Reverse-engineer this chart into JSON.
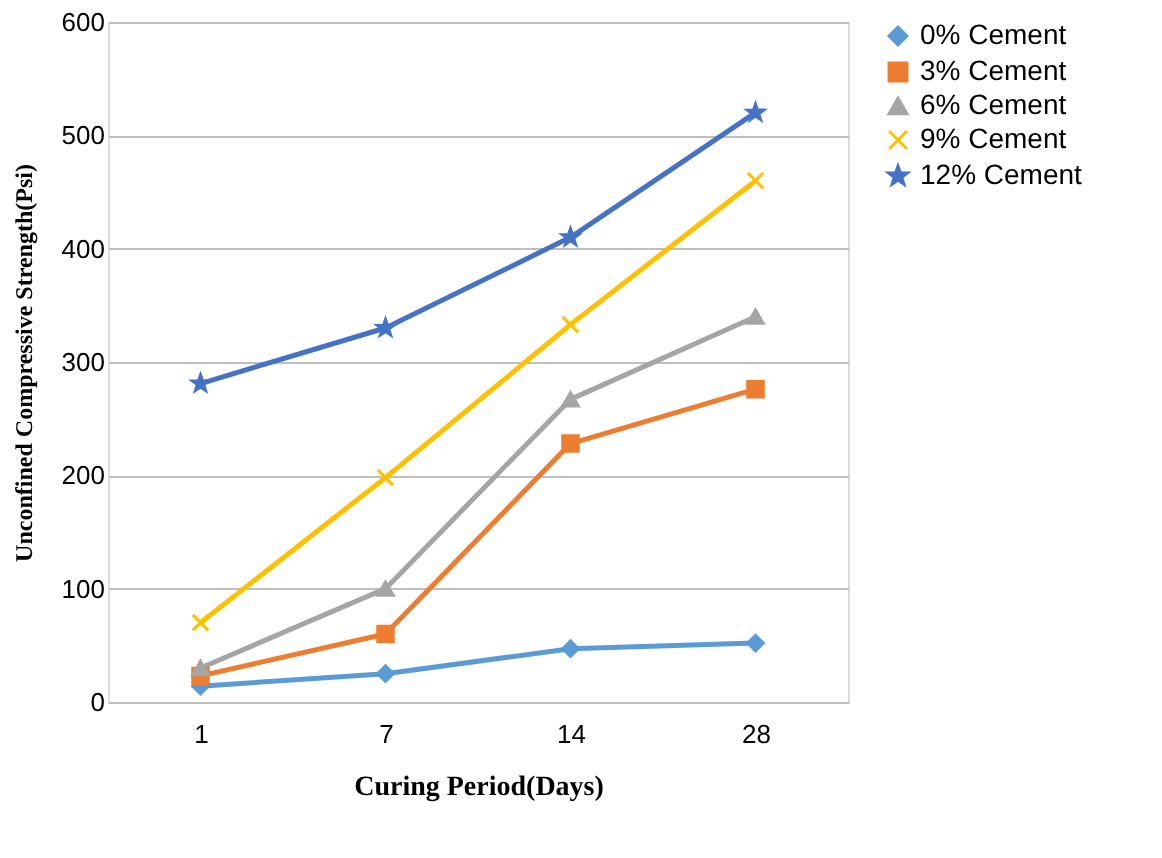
{
  "chart_data": {
    "type": "line",
    "xlabel": "Curing Period(Days)",
    "ylabel": "Unconfined Compressive Strength(Psi)",
    "categories": [
      "1",
      "7",
      "14",
      "28"
    ],
    "ylim": [
      0,
      600
    ],
    "yticks": [
      0,
      100,
      200,
      300,
      400,
      500,
      600
    ],
    "grid": "y",
    "legend": "right",
    "series": [
      {
        "name": "0% Cement",
        "color": "#5b9bd5",
        "marker": "diamond",
        "values": [
          14,
          25,
          47,
          52
        ]
      },
      {
        "name": "3% Cement",
        "color": "#ed7d31",
        "marker": "square",
        "values": [
          23,
          60,
          228,
          276
        ]
      },
      {
        "name": "6% Cement",
        "color": "#a5a5a5",
        "marker": "triangle",
        "values": [
          30,
          100,
          267,
          340
        ]
      },
      {
        "name": "9% Cement",
        "color": "#ffc000",
        "marker": "cross",
        "values": [
          70,
          198,
          333,
          460
        ]
      },
      {
        "name": "12% Cement",
        "color": "#4472c4",
        "marker": "star",
        "values": [
          281,
          330,
          410,
          520
        ]
      }
    ]
  }
}
